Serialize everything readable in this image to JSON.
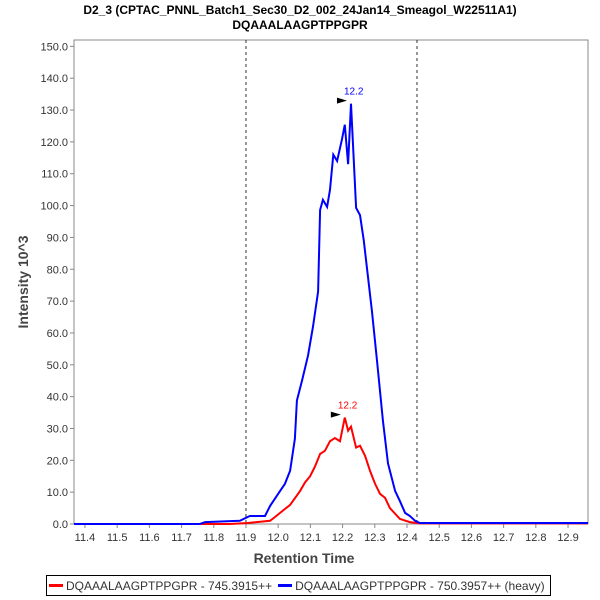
{
  "chart_data": {
    "type": "line",
    "title": "D2_3 (CPTAC_PNNL_Batch1_Sec30_D2_002_24Jan14_Smeagol_W22511A1)",
    "subtitle": "DQAAALAAGPTPPGPR",
    "xlabel": "Retention Time",
    "ylabel": "Intensity 10^3",
    "xlim": [
      11.366,
      12.962
    ],
    "ylim": [
      0,
      152
    ],
    "xticks": [
      "11.4",
      "11.5",
      "11.6",
      "11.7",
      "11.8",
      "11.9",
      "12.0",
      "12.1",
      "12.2",
      "12.3",
      "12.4",
      "12.5",
      "12.6",
      "12.7",
      "12.8",
      "12.9"
    ],
    "yticks": [
      "0.0",
      "10.0",
      "20.0",
      "30.0",
      "40.0",
      "50.0",
      "60.0",
      "70.0",
      "80.0",
      "90.0",
      "100.0",
      "110.0",
      "120.0",
      "130.0",
      "140.0",
      "150.0"
    ],
    "integration_bounds": [
      11.9,
      12.431
    ],
    "legend_position": "bottom",
    "series": [
      {
        "name": "DQAAALAAGPTPPGPR - 745.3915++",
        "color": "#ff0000",
        "peak_label": "12.2",
        "peak": [
          12.207,
          33.4
        ],
        "x": [
          11.366,
          11.85,
          11.906,
          11.975,
          11.99,
          12.021,
          12.037,
          12.068,
          12.083,
          12.099,
          12.114,
          12.13,
          12.145,
          12.161,
          12.176,
          12.192,
          12.207,
          12.217,
          12.226,
          12.242,
          12.254,
          12.27,
          12.285,
          12.301,
          12.316,
          12.332,
          12.347,
          12.378,
          12.409,
          12.44,
          12.962
        ],
        "y": [
          0,
          0,
          0.3,
          1.0,
          2.2,
          4.7,
          6,
          10.4,
          13,
          15,
          18,
          22,
          23,
          26,
          27,
          26,
          33.4,
          29.3,
          30.6,
          24,
          24.6,
          21.4,
          16.7,
          12.6,
          9.5,
          8.2,
          5,
          1.6,
          0.6,
          0.2,
          0.2
        ]
      },
      {
        "name": "DQAAALAAGPTPPGPR - 750.3957++ (heavy)",
        "color": "#0000ff",
        "peak_label": "12.2",
        "peak": [
          12.226,
          132
        ],
        "x": [
          11.366,
          11.757,
          11.773,
          11.881,
          11.912,
          11.959,
          11.975,
          12.006,
          12.021,
          12.037,
          12.052,
          12.058,
          12.074,
          12.093,
          12.108,
          12.124,
          12.13,
          12.139,
          12.152,
          12.161,
          12.171,
          12.183,
          12.198,
          12.207,
          12.217,
          12.226,
          12.242,
          12.254,
          12.266,
          12.276,
          12.291,
          12.307,
          12.325,
          12.341,
          12.363,
          12.378,
          12.394,
          12.409,
          12.425,
          12.44,
          12.962
        ],
        "y": [
          0,
          0,
          0.6,
          1,
          2.5,
          2.5,
          5.7,
          10.4,
          12.6,
          16.7,
          26.8,
          38.8,
          45,
          53,
          62,
          73,
          98.6,
          101.8,
          99.6,
          105,
          116,
          114,
          120.7,
          125.4,
          113,
          132,
          99.3,
          97,
          89,
          80,
          67,
          51,
          32.5,
          19,
          10.4,
          7.2,
          3.5,
          2.5,
          1,
          0.3,
          0.3
        ]
      }
    ]
  }
}
